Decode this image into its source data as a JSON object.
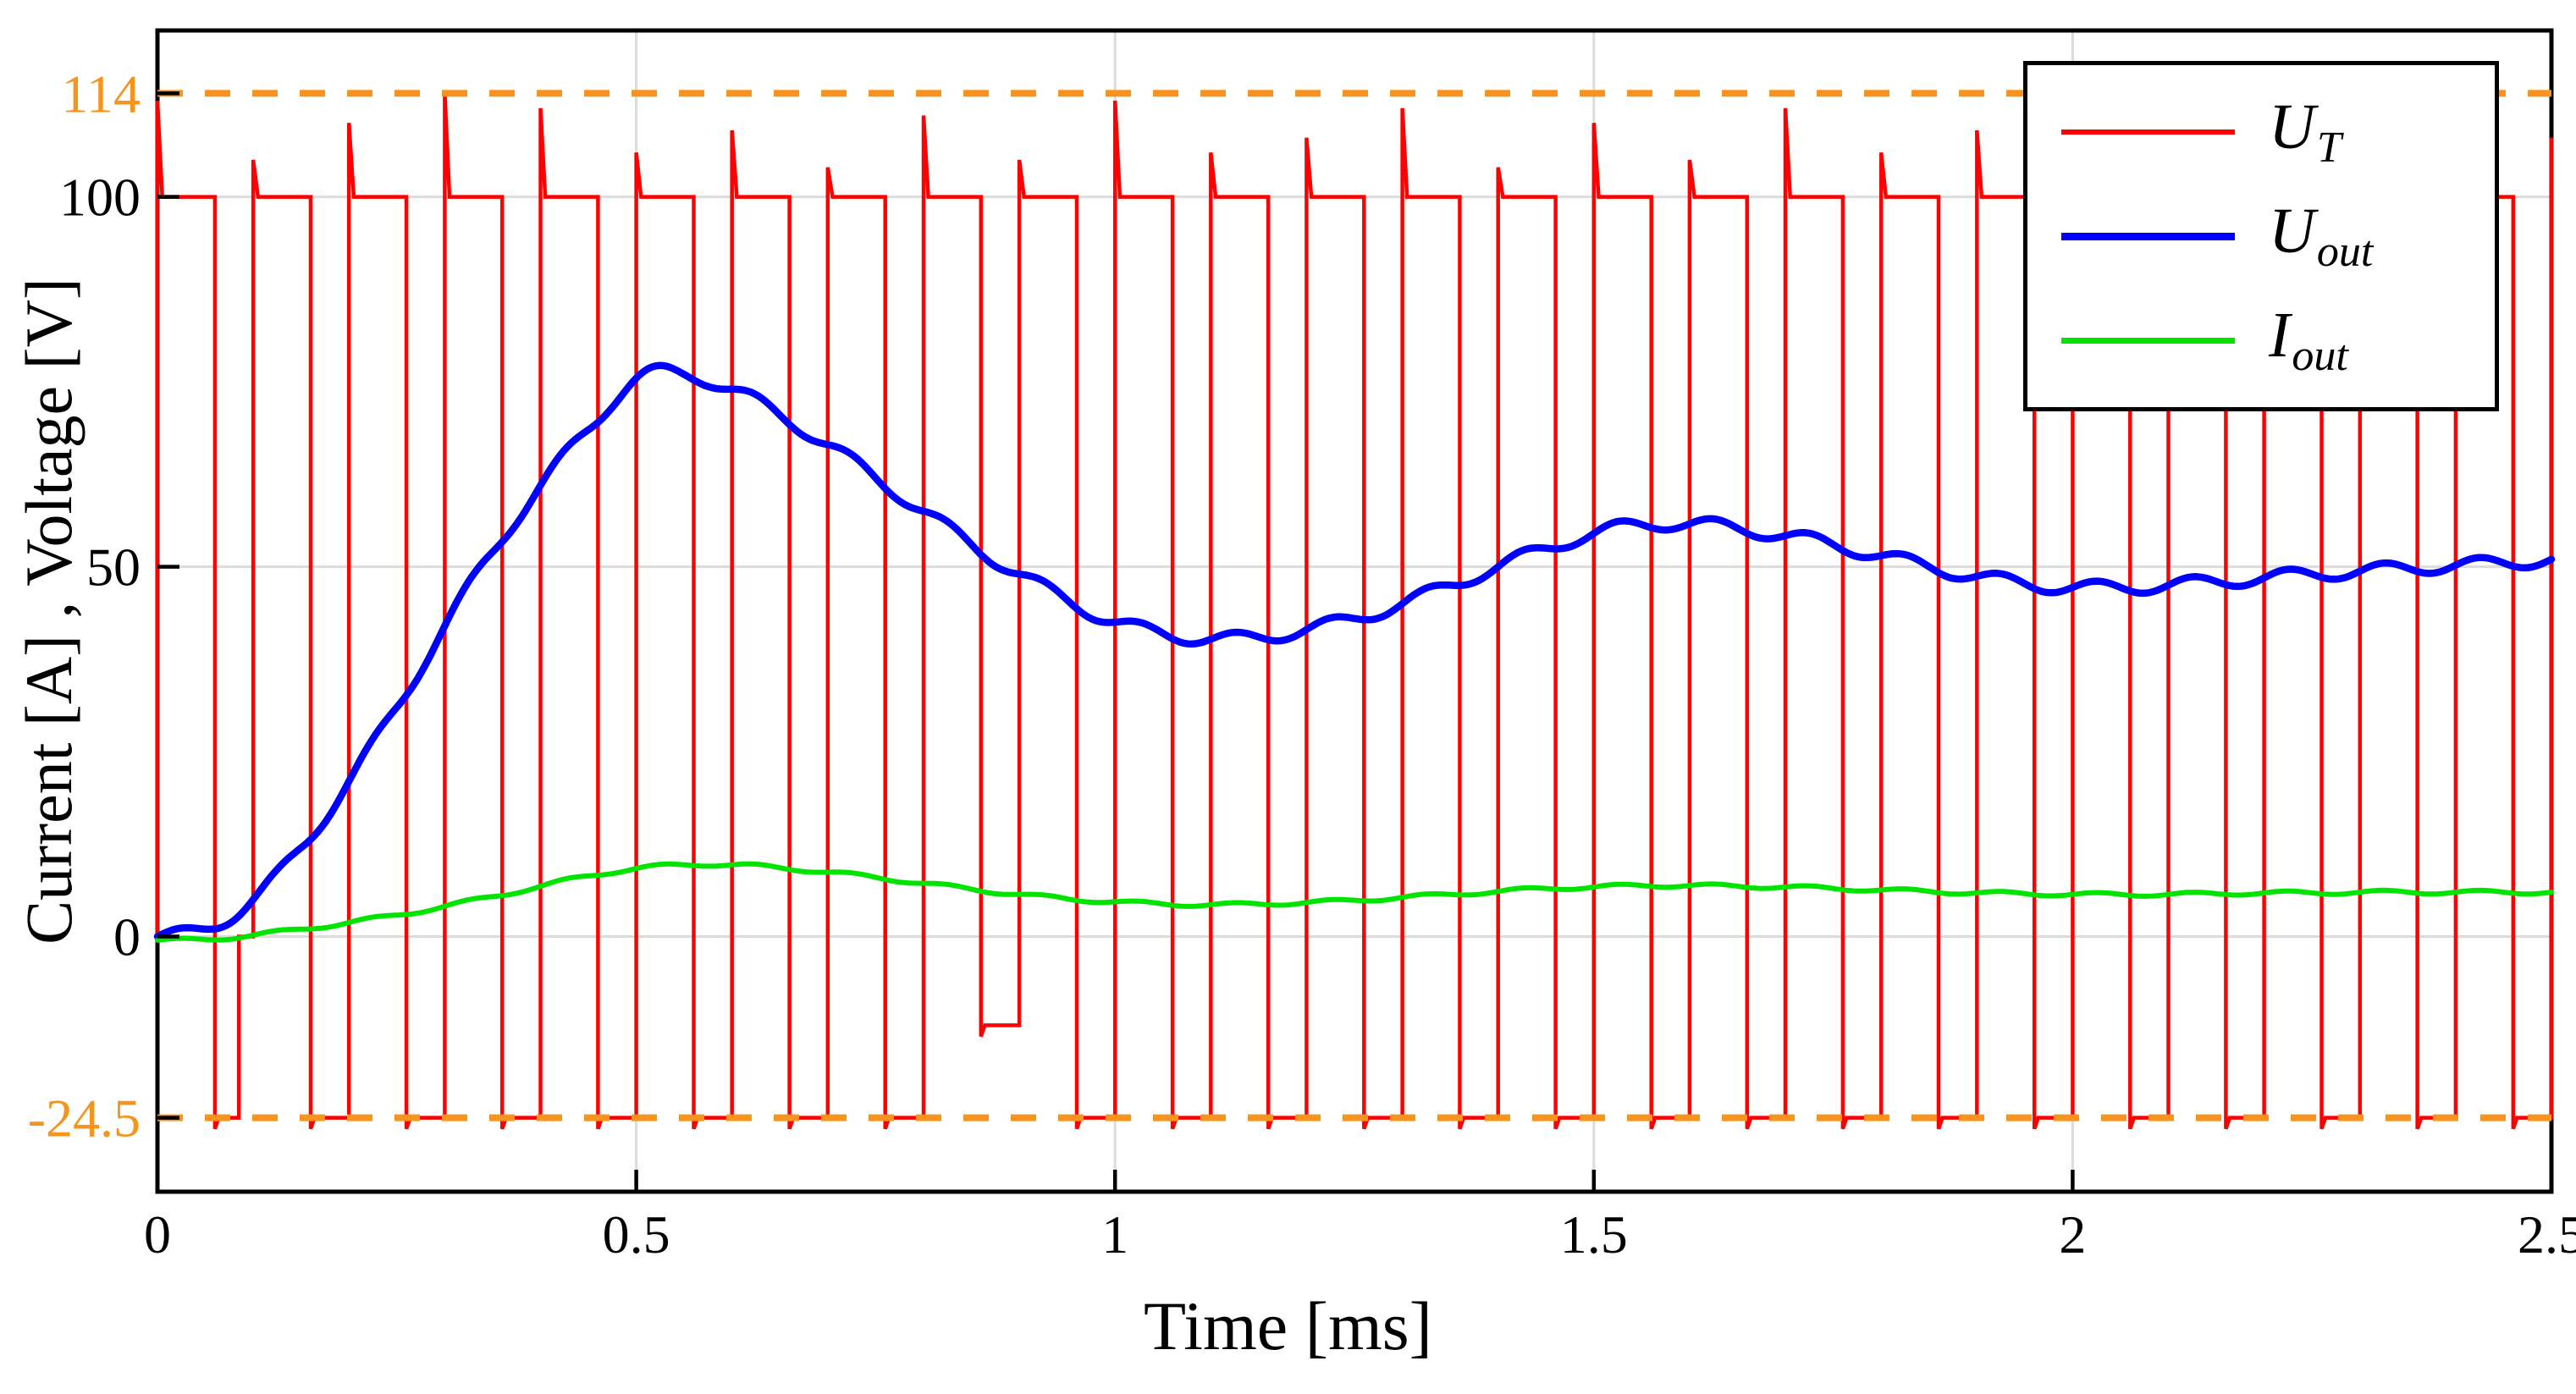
{
  "figure": {
    "background": "#ffffff",
    "box_color": "#000000",
    "grid_color": "#dcdcdc",
    "accent_orange": "#f7941e"
  },
  "axes": {
    "xlabel": "Time [ms]",
    "ylabel": "Current [A] , Voltage [V]",
    "xlim": [
      0,
      2.5
    ],
    "ylim": [
      -34.5,
      122.5
    ],
    "xticks": [
      {
        "value": 0,
        "label": "0",
        "color": "#000000"
      },
      {
        "value": 0.5,
        "label": "0.5",
        "color": "#000000"
      },
      {
        "value": 1,
        "label": "1",
        "color": "#000000"
      },
      {
        "value": 1.5,
        "label": "1.5",
        "color": "#000000"
      },
      {
        "value": 2,
        "label": "2",
        "color": "#000000"
      },
      {
        "value": 2.5,
        "label": "2.5",
        "color": "#000000"
      }
    ],
    "yticks": [
      {
        "value": -24.5,
        "label": "-24.5",
        "color": "#f7941e",
        "grid": false
      },
      {
        "value": 0,
        "label": "0",
        "color": "#000000",
        "grid": true
      },
      {
        "value": 50,
        "label": "50",
        "color": "#000000",
        "grid": true
      },
      {
        "value": 100,
        "label": "100",
        "color": "#000000",
        "grid": true
      },
      {
        "value": 114,
        "label": "114",
        "color": "#f7941e",
        "grid": false
      }
    ]
  },
  "legend": {
    "items": [
      {
        "main": "U",
        "sub": "T",
        "color": "#ff0000",
        "weight": 6
      },
      {
        "main": "U",
        "sub": "out",
        "color": "#0000ff",
        "weight": 9
      },
      {
        "main": "I",
        "sub": "out",
        "color": "#00e400",
        "weight": 7
      }
    ]
  },
  "chart_data": {
    "type": "line",
    "title": "",
    "xlabel": "Time [ms]",
    "ylabel": "Current [A] , Voltage [V]",
    "xlim": [
      0,
      2.5
    ],
    "ylim": [
      -34.5,
      122.5
    ],
    "grid": true,
    "legend_position": "northeast",
    "legend": [
      "U_T",
      "U_out",
      "I_out"
    ],
    "hlines": [
      {
        "y": 114,
        "label": "114",
        "style": "dashed",
        "color": "#f7941e"
      },
      {
        "y": -24.5,
        "label": "-24.5",
        "style": "dashed",
        "color": "#f7941e"
      }
    ],
    "series": [
      {
        "name": "U_T",
        "kind": "pwm",
        "color": "#ff0000",
        "line_width": 4.5,
        "period_ms": 0.1,
        "duty": 0.6,
        "high": 100,
        "low": -24.5,
        "spike_peaks": [
          113,
          105,
          110,
          114,
          112,
          106,
          109,
          104,
          111,
          105,
          113,
          106,
          108,
          112,
          104,
          110,
          105,
          112,
          106,
          109,
          113,
          104,
          108,
          111,
          105
        ],
        "dcm_periods": [
          0
        ],
        "special_lows": {
          "8": -12
        }
      },
      {
        "name": "U_out",
        "kind": "smooth",
        "color": "#0000ff",
        "line_width": 8.5,
        "x_start": 0,
        "x_step": 0.05,
        "ripple_amp": 0.9,
        "ripple_period": 0.1,
        "y": [
          0,
          1,
          5,
          12,
          21,
          31,
          42,
          52,
          61,
          68.5,
          75.5,
          76,
          74,
          70.5,
          66.5,
          62,
          57.5,
          53,
          49,
          45.5,
          42.5,
          41,
          40.2,
          40.5,
          41.5,
          43,
          45,
          47.5,
          50,
          52.5,
          54.5,
          55.7,
          55.8,
          55.2,
          54.2,
          53,
          51.5,
          50,
          48.7,
          47.7,
          47.2,
          47.2,
          47.5,
          48,
          48.5,
          49,
          49.4,
          49.8,
          50.2,
          50.5,
          51
        ]
      },
      {
        "name": "I_out",
        "kind": "smooth",
        "color": "#00e400",
        "line_width": 6,
        "x_start": 0,
        "x_step": 0.05,
        "ripple_amp": 0.25,
        "ripple_period": 0.1,
        "y": [
          -0.5,
          -0.4,
          0.2,
          1,
          1.9,
          2.9,
          4.1,
          5.4,
          6.8,
          8.2,
          9.2,
          9.7,
          9.7,
          9.3,
          8.7,
          8,
          7.2,
          6.4,
          5.7,
          5.1,
          4.7,
          4.4,
          4.3,
          4.4,
          4.6,
          4.9,
          5.3,
          5.7,
          6.1,
          6.5,
          6.7,
          6.9,
          6.9,
          6.8,
          6.7,
          6.5,
          6.3,
          6.1,
          5.9,
          5.8,
          5.7,
          5.7,
          5.7,
          5.8,
          5.9,
          5.9,
          6,
          6,
          6,
          6,
          6
        ]
      }
    ]
  }
}
